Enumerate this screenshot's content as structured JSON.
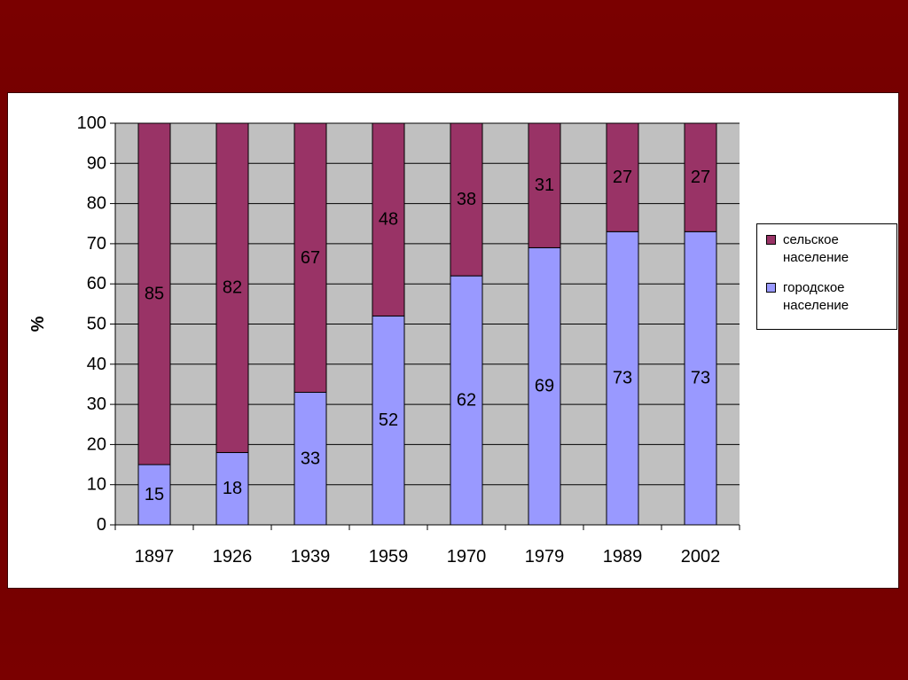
{
  "colors": {
    "slide_background": "#700000",
    "plot_background": "#c0c0c0",
    "rural": "#993366",
    "urban": "#9999ff",
    "gridline": "#000000"
  },
  "chart_data": {
    "type": "bar",
    "stacked": true,
    "categories": [
      "1897",
      "1926",
      "1939",
      "1959",
      "1970",
      "1979",
      "1989",
      "2002"
    ],
    "series": [
      {
        "name": "городское население",
        "values": [
          15,
          18,
          33,
          52,
          62,
          69,
          73,
          73
        ]
      },
      {
        "name": "сельское население",
        "values": [
          85,
          82,
          67,
          48,
          38,
          31,
          27,
          27
        ]
      }
    ],
    "ylabel": "%",
    "ylim": [
      0,
      100
    ],
    "yticks": [
      "0",
      "10",
      "20",
      "30",
      "40",
      "50",
      "60",
      "70",
      "80",
      "90",
      "100"
    ],
    "grid": true,
    "legend_position": "right",
    "data_labels": true
  },
  "legend": {
    "items": [
      {
        "label": "сельское население",
        "color": "#993366"
      },
      {
        "label": "городское население",
        "color": "#9999ff"
      }
    ]
  }
}
